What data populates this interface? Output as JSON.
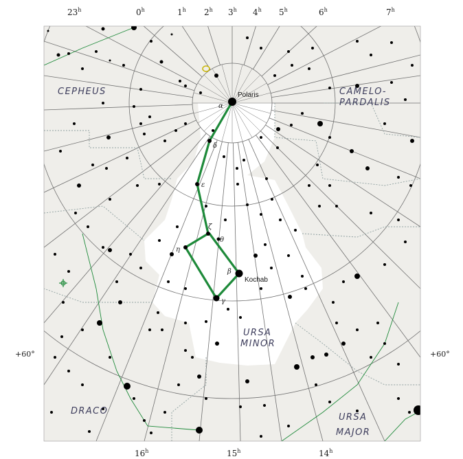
{
  "ra_labels_top": [
    {
      "h": "23",
      "u": "h"
    },
    {
      "h": "0",
      "u": "h"
    },
    {
      "h": "1",
      "u": "h"
    },
    {
      "h": "2",
      "u": "h"
    },
    {
      "h": "3",
      "u": "h"
    },
    {
      "h": "4",
      "u": "h"
    },
    {
      "h": "5",
      "u": "h"
    },
    {
      "h": "6",
      "u": "h"
    },
    {
      "h": "7",
      "u": "h"
    }
  ],
  "ra_labels_bottom": [
    {
      "h": "16",
      "u": "h"
    },
    {
      "h": "15",
      "u": "h"
    },
    {
      "h": "14",
      "u": "h"
    }
  ],
  "dec_labels": {
    "left": "+60°",
    "right": "+60°"
  },
  "constellations": {
    "cepheus": "CEPHEUS",
    "camelopardalis_1": "CAMELO-",
    "camelopardalis_2": "PARDALIS",
    "ursa_minor_1": "URSA",
    "ursa_minor_2": "MINOR",
    "draco": "DRACO",
    "ursa_major_1": "URSA",
    "ursa_major_2": "MAJOR"
  },
  "named_stars": {
    "polaris": "Polaris",
    "kochab": "Kochab"
  },
  "greek_letters": {
    "alpha": "α",
    "delta": "δ",
    "epsilon": "ε",
    "zeta": "ζ",
    "eta": "η",
    "theta": "θ",
    "beta": "β",
    "gamma": "γ"
  },
  "colors": {
    "paper": "#efeeea",
    "milkyway": "#ffffff",
    "grid": "#6f6f6f",
    "asterism": "#1e8a3a",
    "boundary": "#8fa0a0",
    "star": "#000000"
  }
}
